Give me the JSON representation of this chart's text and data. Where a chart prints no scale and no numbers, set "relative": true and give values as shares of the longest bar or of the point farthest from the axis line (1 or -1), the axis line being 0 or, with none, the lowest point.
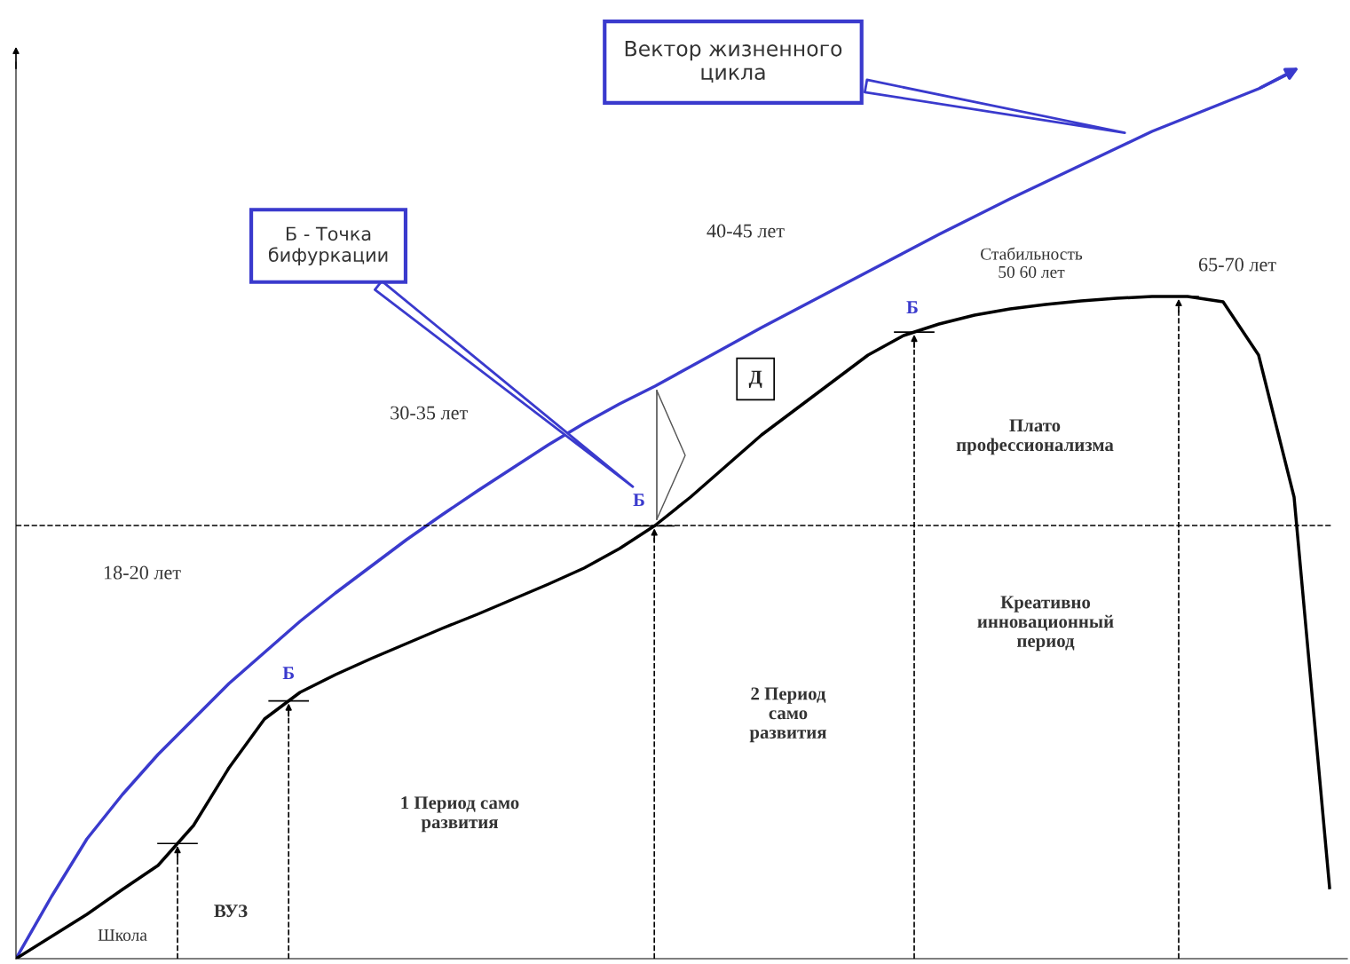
{
  "chart_data": {
    "type": "line",
    "relative": true,
    "categories": [
      null,
      null,
      null,
      null,
      null,
      null,
      null,
      null,
      null,
      null,
      null,
      null,
      null,
      null,
      null,
      null,
      null,
      null,
      null,
      null,
      null,
      null,
      null,
      null,
      null,
      null,
      null,
      null,
      null,
      null,
      null,
      null,
      null,
      null,
      null,
      null,
      null,
      null
    ],
    "series": [
      {
        "color": "#3a3acd",
        "values": [
          0,
          0.07,
          0.135,
          0.185,
          0.23,
          0.27,
          0.31,
          0.345,
          0.38,
          0.412,
          0.442,
          0.472,
          0.5,
          0.527,
          0.553,
          0.579,
          0.603,
          0.625,
          0.645,
          0.667,
          0.689,
          0.711,
          0.732,
          0.753,
          0.774,
          0.795,
          0.816,
          0.836,
          0.856,
          0.875,
          0.894,
          0.913,
          0.932,
          0.948,
          0.964,
          0.98,
          1.0,
          null
        ]
      },
      {
        "color": "#000000",
        "values": [
          0,
          0.025,
          0.05,
          0.078,
          0.105,
          0.15,
          0.215,
          0.27,
          0.3,
          0.32,
          0.338,
          0.355,
          0.372,
          0.388,
          0.405,
          0.422,
          0.44,
          0.462,
          0.488,
          0.52,
          0.555,
          0.59,
          0.62,
          0.65,
          0.68,
          0.702,
          0.715,
          0.725,
          0.732,
          0.737,
          0.741,
          0.744,
          0.746,
          0.746,
          0.74,
          0.68,
          0.52,
          0.08
        ]
      }
    ],
    "ref_lines": [
      {
        "axis": "y",
        "value": 0.488,
        "line_style": "dashed",
        "color": "#000000"
      }
    ],
    "annotations": [
      "Вектор жизненного\nцикла",
      "Б - Точка\nбифуркации",
      "40-45 лет",
      "30-35 лет",
      "18-20 лет",
      "Стабильность\n50 60 лет",
      "65-70 лет",
      "Д",
      "Б",
      "Б",
      "Б",
      "Плато\nпрофессионализма",
      "Креативно\nинновационный\nпериод",
      "2 Период\nсамо\nразвития",
      "1 Период само\nразвития",
      "Школа",
      "ВУЗ"
    ],
    "line_style": "solid",
    "marker": "none"
  }
}
